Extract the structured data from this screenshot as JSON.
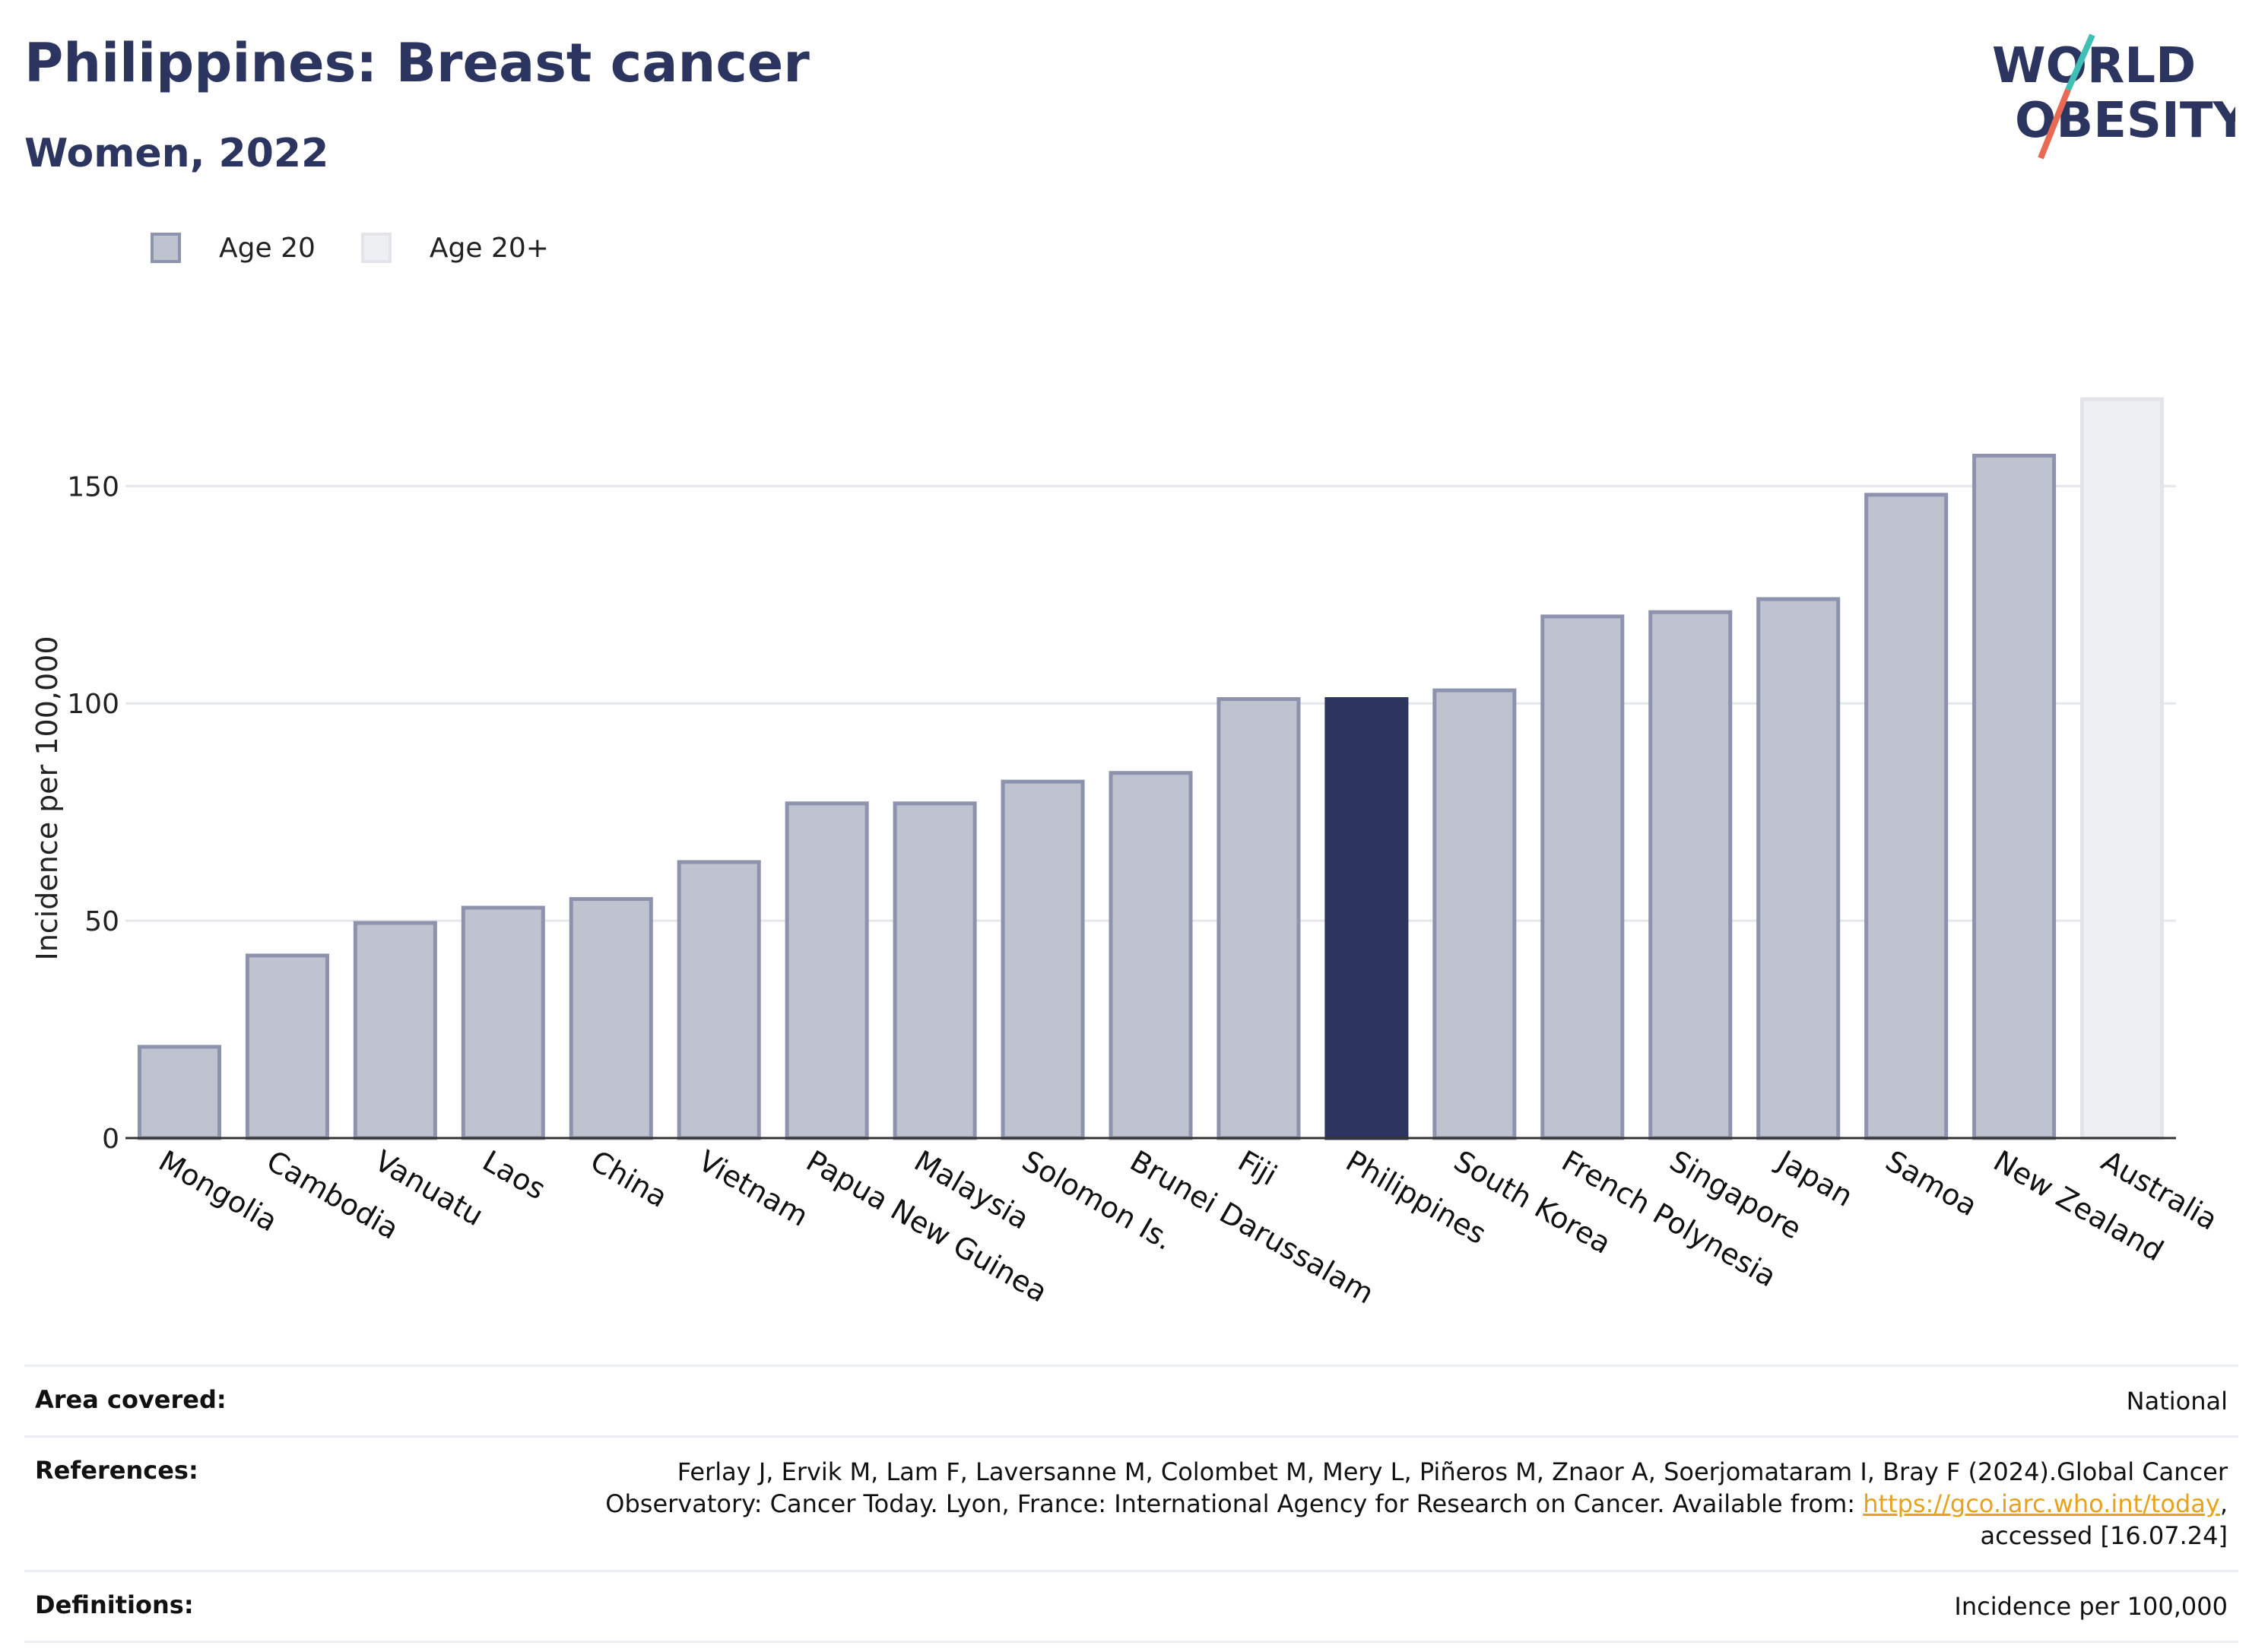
{
  "header": {
    "title": "Philippines: Breast cancer",
    "subtitle": "Women, 2022"
  },
  "logo": {
    "line1": "WORLD",
    "line2": "OBESITY"
  },
  "legend": [
    {
      "label": "Age 20",
      "color": "#bfc2cf",
      "border": "#8d93ac"
    },
    {
      "label": "Age 20+",
      "color": "#eeeff3",
      "border": "#e2e4ea"
    }
  ],
  "colors": {
    "highlight": "#2b3560",
    "bar": "#bfc2cf",
    "bar_border": "#8d93ac",
    "bar_light": "#eeeff3",
    "bar_light_border": "#e2e4ea"
  },
  "chart_data": {
    "type": "bar",
    "title": "Philippines: Breast cancer",
    "subtitle": "Women, 2022",
    "ylabel": "Incidence per 100,000",
    "xlabel": "",
    "ylim": [
      0,
      170
    ],
    "yticks": [
      0,
      50,
      100,
      150
    ],
    "grid": true,
    "legend_position": "top-left",
    "highlight": "Philippines",
    "categories": [
      "Mongolia",
      "Cambodia",
      "Vanuatu",
      "Laos",
      "China",
      "Vietnam",
      "Papua New Guinea",
      "Malaysia",
      "Solomon Is.",
      "Brunei Darussalam",
      "Fiji",
      "Philippines",
      "South Korea",
      "French Polynesia",
      "Singapore",
      "Japan",
      "Samoa",
      "New Zealand",
      "Australia"
    ],
    "values": [
      21,
      42,
      49.5,
      53,
      55,
      63.5,
      77,
      77,
      82,
      84,
      101,
      101,
      103,
      120,
      121,
      124,
      148,
      157,
      170
    ],
    "series_group": [
      "Age 20",
      "Age 20",
      "Age 20",
      "Age 20",
      "Age 20",
      "Age 20",
      "Age 20",
      "Age 20",
      "Age 20",
      "Age 20",
      "Age 20",
      "Age 20",
      "Age 20",
      "Age 20",
      "Age 20",
      "Age 20",
      "Age 20",
      "Age 20",
      "Age 20+"
    ]
  },
  "footer": {
    "area_label": "Area covered:",
    "area_value": "National",
    "ref_label": "References:",
    "ref_line1": "Ferlay J, Ervik M, Lam F, Laversanne M, Colombet M, Mery L, Piñeros M, Znaor A, Soerjomataram I, Bray F (2024).Global Cancer",
    "ref_line2_pre": "Observatory: Cancer Today. Lyon, France: International Agency for Research on Cancer. Available from: ",
    "ref_link": "https://gco.iarc.who.int/today",
    "ref_line2_post": ",",
    "ref_line3": "accessed [16.07.24]",
    "def_label": "Definitions:",
    "def_value": "Incidence per 100,000"
  }
}
